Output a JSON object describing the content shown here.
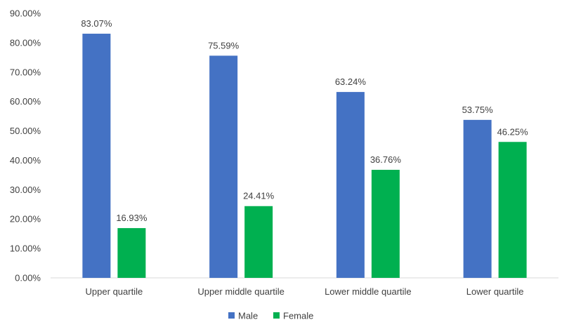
{
  "chart_data": {
    "type": "bar",
    "title": "",
    "xlabel": "",
    "ylabel": "",
    "ylim": [
      0,
      90
    ],
    "ytick_step": 10,
    "ytick_format": "percent_2dp",
    "grid": false,
    "legend_position": "bottom",
    "categories": [
      "Upper quartile",
      "Upper middle quartile",
      "Lower middle quartile",
      "Lower quartile"
    ],
    "series": [
      {
        "name": "Male",
        "color": "#4472C4",
        "values": [
          83.07,
          75.59,
          63.24,
          53.75
        ],
        "labels": [
          "83.07%",
          "75.59%",
          "63.24%",
          "53.75%"
        ]
      },
      {
        "name": "Female",
        "color": "#00B050",
        "values": [
          16.93,
          24.41,
          36.76,
          46.25
        ],
        "labels": [
          "16.93%",
          "24.41%",
          "36.76%",
          "46.25%"
        ]
      }
    ],
    "y_tick_labels": [
      "0.00%",
      "10.00%",
      "20.00%",
      "30.00%",
      "40.00%",
      "50.00%",
      "60.00%",
      "70.00%",
      "80.00%",
      "90.00%"
    ]
  }
}
